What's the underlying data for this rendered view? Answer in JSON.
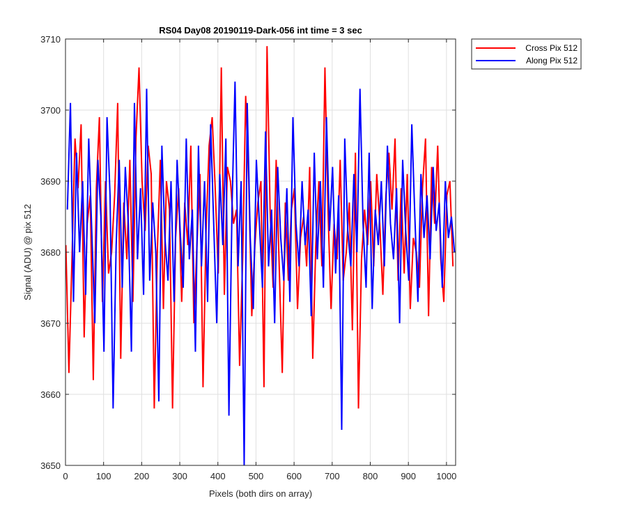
{
  "chart_data": {
    "type": "line",
    "title": "RS04 Day08 20190119-Dark-056 int time = 3 sec",
    "xlabel": "Pixels (both dirs on array)",
    "ylabel": "Signal (ADU) @ pix 512",
    "xlim": [
      0,
      1024
    ],
    "ylim": [
      3650,
      3710
    ],
    "x_ticks": [
      0,
      100,
      200,
      300,
      400,
      500,
      600,
      700,
      800,
      900,
      1000
    ],
    "y_ticks": [
      3650,
      3660,
      3670,
      3680,
      3690,
      3700,
      3710
    ],
    "grid": true,
    "legend_position": "outside-top-right",
    "series": [
      {
        "name": "Cross Pix 512",
        "color": "#ff0000",
        "x_start": 1,
        "x_step": 8,
        "values": [
          3681,
          3663,
          3679,
          3696,
          3689,
          3698,
          3668,
          3684,
          3688,
          3662,
          3689,
          3699,
          3673,
          3690,
          3677,
          3680,
          3688,
          3701,
          3665,
          3687,
          3679,
          3693,
          3673,
          3696,
          3706,
          3690,
          3683,
          3695,
          3691,
          3658,
          3680,
          3693,
          3672,
          3690,
          3686,
          3658,
          3682,
          3689,
          3673,
          3687,
          3681,
          3695,
          3670,
          3681,
          3691,
          3661,
          3683,
          3695,
          3699,
          3689,
          3677,
          3706,
          3674,
          3692,
          3690,
          3684,
          3686,
          3664,
          3679,
          3702,
          3690,
          3671,
          3681,
          3687,
          3690,
          3661,
          3709,
          3686,
          3675,
          3693,
          3678,
          3663,
          3687,
          3676,
          3686,
          3689,
          3672,
          3682,
          3685,
          3678,
          3692,
          3665,
          3681,
          3690,
          3678,
          3706,
          3686,
          3672,
          3684,
          3679,
          3693,
          3676,
          3680,
          3687,
          3669,
          3694,
          3658,
          3679,
          3686,
          3681,
          3690,
          3678,
          3691,
          3684,
          3674,
          3688,
          3694,
          3686,
          3696,
          3676,
          3689,
          3677,
          3691,
          3672,
          3682,
          3680,
          3675,
          3689,
          3696,
          3671,
          3692,
          3684,
          3695,
          3679,
          3673,
          3688,
          3690,
          3678
        ]
      },
      {
        "name": "Along Pix 512",
        "color": "#0000ff",
        "x_start": 5,
        "x_step": 8,
        "values": [
          3686,
          3701,
          3673,
          3694,
          3680,
          3690,
          3674,
          3696,
          3683,
          3670,
          3693,
          3685,
          3666,
          3699,
          3688,
          3658,
          3681,
          3693,
          3675,
          3692,
          3684,
          3666,
          3701,
          3679,
          3689,
          3674,
          3703,
          3676,
          3687,
          3680,
          3659,
          3695,
          3682,
          3676,
          3690,
          3673,
          3693,
          3683,
          3675,
          3696,
          3679,
          3686,
          3666,
          3695,
          3678,
          3690,
          3673,
          3698,
          3684,
          3670,
          3691,
          3681,
          3696,
          3657,
          3686,
          3704,
          3678,
          3690,
          3650,
          3701,
          3682,
          3672,
          3693,
          3684,
          3675,
          3697,
          3678,
          3686,
          3670,
          3692,
          3682,
          3676,
          3689,
          3673,
          3699,
          3684,
          3678,
          3690,
          3681,
          3686,
          3671,
          3694,
          3679,
          3690,
          3675,
          3699,
          3683,
          3692,
          3677,
          3688,
          3655,
          3696,
          3683,
          3678,
          3691,
          3680,
          3703,
          3684,
          3675,
          3694,
          3672,
          3686,
          3681,
          3690,
          3678,
          3695,
          3684,
          3679,
          3689,
          3670,
          3693,
          3683,
          3676,
          3698,
          3685,
          3673,
          3691,
          3682,
          3688,
          3679,
          3692,
          3683,
          3687,
          3675,
          3690,
          3682,
          3685,
          3680
        ]
      }
    ]
  }
}
